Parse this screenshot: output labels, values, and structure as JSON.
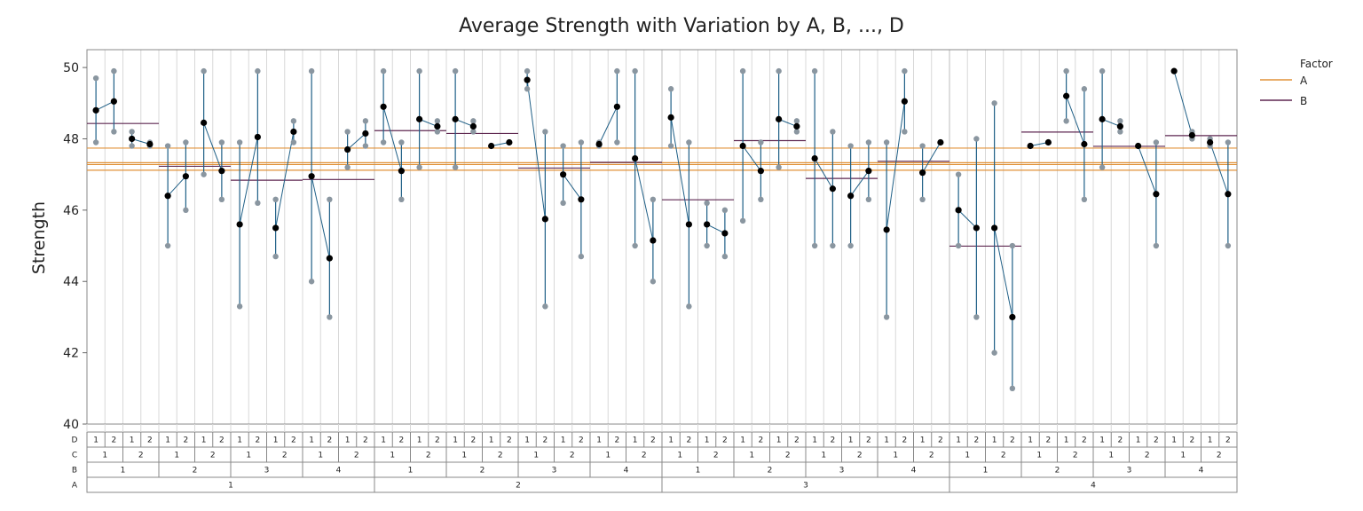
{
  "chart_data": {
    "type": "variability",
    "title": "Average Strength with Variation by A, B, ..., D",
    "ylabel": "Strength",
    "ylim": [
      40,
      50.5
    ],
    "yticks": [
      40,
      42,
      44,
      46,
      48,
      50
    ],
    "ytick_labels": [
      "40",
      "42",
      "44",
      "46",
      "48",
      "50"
    ],
    "factor_names": [
      "D",
      "C",
      "B",
      "A"
    ],
    "levels": {
      "A": [
        "1",
        "2",
        "3",
        "4"
      ],
      "B": [
        "1",
        "2",
        "3",
        "4"
      ],
      "C": [
        "1",
        "2"
      ],
      "D": [
        "1",
        "2"
      ]
    },
    "legend": {
      "title": "Factor",
      "items": [
        {
          "name": "A",
          "color": "#E0923A"
        },
        {
          "name": "B",
          "color": "#5E2750"
        }
      ]
    },
    "colors": {
      "range_line": "#1F5F86",
      "point": "#8A96A0",
      "mean_point": "#000000",
      "mean_line": "#1F5F86",
      "frame": "#888888",
      "grid": "#d8d8d8"
    },
    "cells": [
      [
        47.9,
        49.7,
        48.8
      ],
      [
        48.2,
        49.9,
        49.05
      ],
      [
        47.8,
        48.2,
        48.0
      ],
      [
        47.8,
        47.9,
        47.85
      ],
      [
        45.0,
        47.8,
        46.4
      ],
      [
        46.0,
        47.9,
        46.95
      ],
      [
        47.0,
        49.9,
        48.45
      ],
      [
        46.3,
        47.9,
        47.1
      ],
      [
        43.3,
        47.9,
        45.6
      ],
      [
        46.2,
        49.9,
        48.05
      ],
      [
        44.7,
        46.3,
        45.5
      ],
      [
        47.9,
        48.5,
        48.2
      ],
      [
        44.0,
        49.9,
        46.95
      ],
      [
        43.0,
        46.3,
        44.65
      ],
      [
        47.2,
        48.2,
        47.7
      ],
      [
        47.8,
        48.5,
        48.15
      ],
      [
        47.9,
        49.9,
        48.9
      ],
      [
        46.3,
        47.9,
        47.1
      ],
      [
        47.2,
        49.9,
        48.55
      ],
      [
        48.2,
        48.5,
        48.35
      ],
      [
        47.2,
        49.9,
        48.55
      ],
      [
        48.2,
        48.5,
        48.35
      ],
      [
        47.8,
        47.8,
        47.8
      ],
      [
        47.9,
        47.9,
        47.9
      ],
      [
        49.4,
        49.9,
        49.65
      ],
      [
        43.3,
        48.2,
        45.75
      ],
      [
        46.2,
        47.8,
        47.0
      ],
      [
        44.7,
        47.9,
        46.3
      ],
      [
        47.8,
        47.9,
        47.85
      ],
      [
        47.9,
        49.9,
        48.9
      ],
      [
        45.0,
        49.9,
        47.45
      ],
      [
        44.0,
        46.3,
        45.15
      ],
      [
        47.8,
        49.4,
        48.6
      ],
      [
        43.3,
        47.9,
        45.6
      ],
      [
        45.0,
        46.2,
        45.6
      ],
      [
        44.7,
        46.0,
        45.35
      ],
      [
        45.7,
        49.9,
        47.8
      ],
      [
        46.3,
        47.9,
        47.1
      ],
      [
        47.2,
        49.9,
        48.55
      ],
      [
        48.2,
        48.5,
        48.35
      ],
      [
        45.0,
        49.9,
        47.45
      ],
      [
        45.0,
        48.2,
        46.6
      ],
      [
        45.0,
        47.8,
        46.4
      ],
      [
        46.3,
        47.9,
        47.1
      ],
      [
        43.0,
        47.9,
        45.45
      ],
      [
        48.2,
        49.9,
        49.05
      ],
      [
        46.3,
        47.8,
        47.05
      ],
      [
        47.9,
        47.9,
        47.9
      ],
      [
        45.0,
        47.0,
        46.0
      ],
      [
        43.0,
        48.0,
        45.5
      ],
      [
        42.0,
        49.0,
        45.5
      ],
      [
        41.0,
        45.0,
        43.0
      ],
      [
        47.8,
        47.8,
        47.8
      ],
      [
        47.9,
        47.9,
        47.9
      ],
      [
        48.5,
        49.9,
        49.2
      ],
      [
        46.3,
        49.4,
        47.85
      ],
      [
        47.2,
        49.9,
        48.55
      ],
      [
        48.2,
        48.5,
        48.35
      ],
      [
        47.8,
        47.8,
        47.8
      ],
      [
        45.0,
        47.9,
        46.45
      ],
      [
        49.9,
        49.9,
        49.9
      ],
      [
        48.0,
        48.2,
        48.1
      ],
      [
        47.8,
        48.0,
        47.9
      ],
      [
        45.0,
        47.9,
        46.45
      ]
    ],
    "A_means": [
      47.33,
      47.74,
      47.12,
      47.28
    ],
    "B_means": [
      48.43,
      47.23,
      46.84,
      46.86,
      48.23,
      48.15,
      47.18,
      47.34,
      46.29,
      47.95,
      46.89,
      47.37,
      44.99,
      48.19,
      47.79,
      48.09
    ]
  }
}
